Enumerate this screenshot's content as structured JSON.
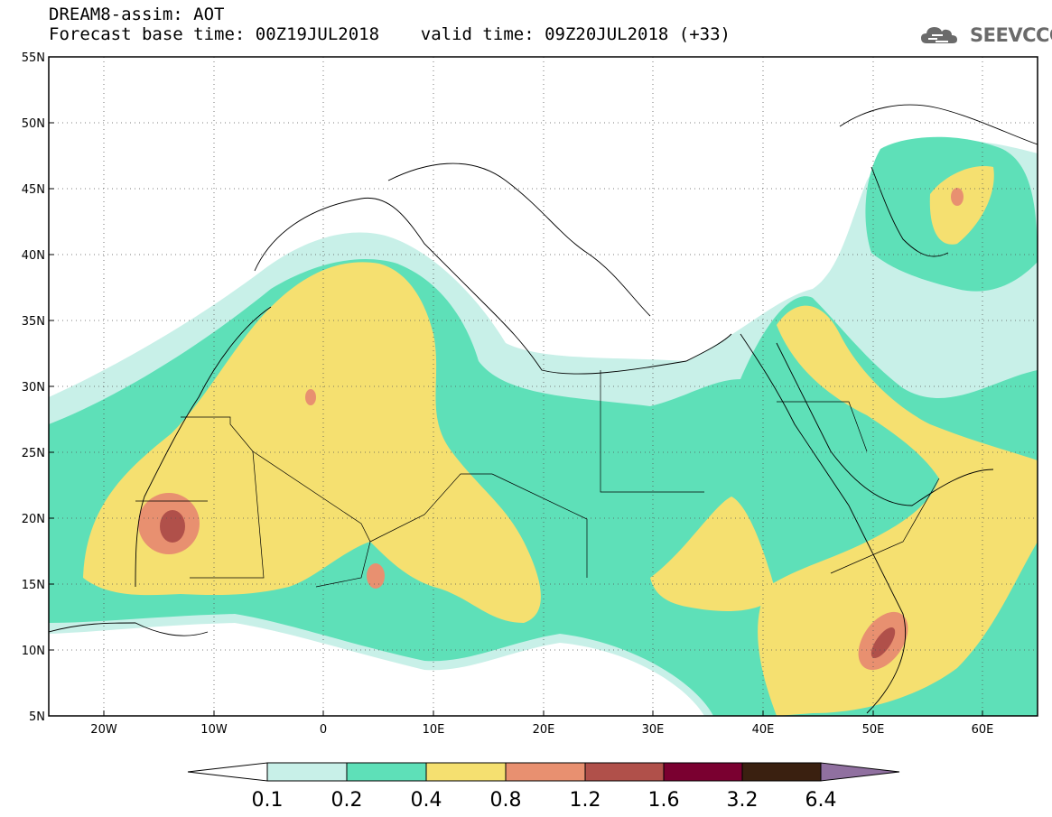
{
  "header": {
    "line1": "DREAM8-assim: AOT",
    "line2": "Forecast base time: 00Z19JUL2018    valid time: 09Z20JUL2018 (+33)"
  },
  "logo": {
    "text": "SEEVCCC",
    "icon": "cloud-logo-icon"
  },
  "map": {
    "lon_range": [
      -25,
      65
    ],
    "lat_range": [
      5,
      55
    ],
    "lat_labels": [
      "55N",
      "50N",
      "45N",
      "40N",
      "35N",
      "30N",
      "25N",
      "20N",
      "15N",
      "10N",
      "5N"
    ],
    "lon_labels": [
      "20W",
      "10W",
      "0",
      "10E",
      "20E",
      "30E",
      "40E",
      "50E",
      "60E"
    ],
    "gridlines": "dotted"
  },
  "colorbar": {
    "labels": [
      "0.1",
      "0.2",
      "0.4",
      "0.8",
      "1.2",
      "1.6",
      "3.2",
      "6.4"
    ],
    "colors": [
      "#c8f0e8",
      "#5ee0b8",
      "#f5e070",
      "#e89070",
      "#b0504a",
      "#7a0030",
      "#3a2010",
      "#9070a0"
    ],
    "under_color": "#ffffff",
    "over_color": "#9070a0"
  }
}
